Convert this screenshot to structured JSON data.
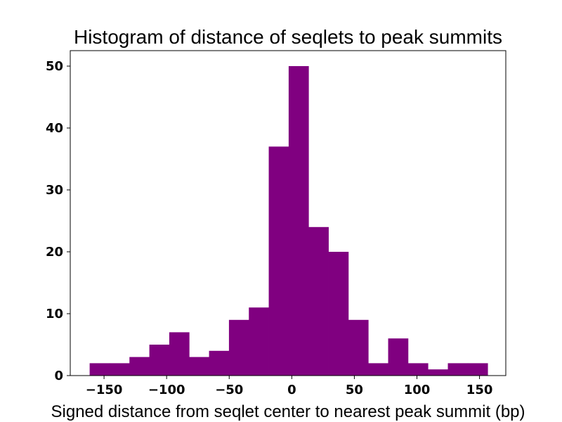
{
  "chart_data": {
    "type": "bar",
    "title": "Histogram of distance of seqlets to peak summits",
    "xlabel": "Signed distance from seqlet center to nearest peak summit (bp)",
    "ylabel": "",
    "bar_color": "#800080",
    "xlim": [
      -177,
      171
    ],
    "ylim": [
      0,
      52.5
    ],
    "bin_edges": [
      -161.5,
      -145.6,
      -129.7,
      -113.8,
      -97.9,
      -82.0,
      -66.1,
      -50.2,
      -34.3,
      -18.4,
      -2.5,
      13.4,
      29.3,
      45.2,
      61.1,
      77.0,
      92.9,
      108.8,
      124.7,
      140.6,
      156.5
    ],
    "counts": [
      2,
      2,
      3,
      5,
      7,
      3,
      4,
      9,
      11,
      37,
      50,
      24,
      20,
      9,
      2,
      6,
      2,
      1,
      2,
      2
    ],
    "x_ticks": [
      -150,
      -100,
      -50,
      0,
      50,
      100,
      150
    ],
    "x_tick_labels": [
      "−150",
      "−100",
      "−50",
      "0",
      "50",
      "100",
      "150"
    ],
    "y_ticks": [
      0,
      10,
      20,
      30,
      40,
      50
    ],
    "y_tick_labels": [
      "0",
      "10",
      "20",
      "30",
      "40",
      "50"
    ]
  }
}
